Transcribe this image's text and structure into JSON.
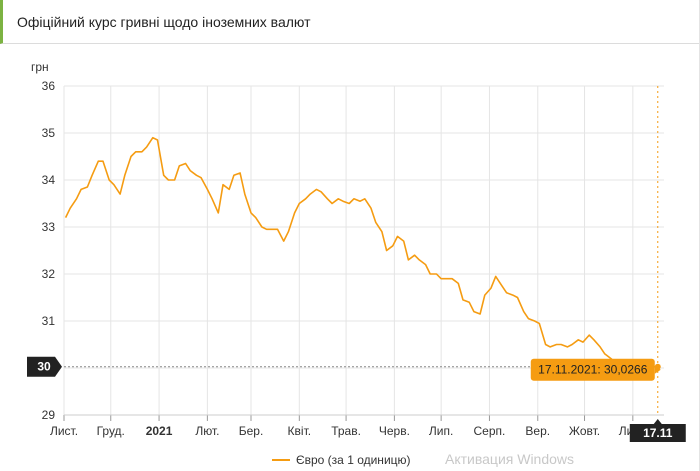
{
  "panel": {
    "title": "Офіційний курс гривні щодо іноземних валют"
  },
  "watermark": "Активация Windows",
  "colors": {
    "series": "#f59c12",
    "grid": "#e5e5e5",
    "axis": "#666666",
    "highlight_bg": "#222222",
    "tooltip_bg": "#f59c12",
    "accent": "#7cb342"
  },
  "chart_data": {
    "type": "line",
    "title": "",
    "xlabel": "",
    "ylabel": "грн",
    "ylim": [
      29,
      36
    ],
    "yticks": [
      29,
      30,
      31,
      32,
      33,
      34,
      35,
      36
    ],
    "grid": true,
    "legend": "bottom-center",
    "x_range": [
      "2020-11-01",
      "2021-11-21"
    ],
    "xticks": [
      {
        "date": "2020-11-01",
        "label": "Лист."
      },
      {
        "date": "2020-12-01",
        "label": "Груд."
      },
      {
        "date": "2021-01-01",
        "label": "2021"
      },
      {
        "date": "2021-02-01",
        "label": "Лют."
      },
      {
        "date": "2021-03-01",
        "label": "Бер."
      },
      {
        "date": "2021-04-01",
        "label": "Квіт."
      },
      {
        "date": "2021-05-01",
        "label": "Трав."
      },
      {
        "date": "2021-06-01",
        "label": "Черв."
      },
      {
        "date": "2021-07-01",
        "label": "Лип."
      },
      {
        "date": "2021-08-01",
        "label": "Серп."
      },
      {
        "date": "2021-09-01",
        "label": "Вер."
      },
      {
        "date": "2021-10-01",
        "label": "Жовт."
      },
      {
        "date": "2021-11-01",
        "label": "Лист."
      }
    ],
    "series": [
      {
        "name": "Євро (за 1 одиницю)",
        "x": [
          "2020-11-02",
          "2020-11-05",
          "2020-11-09",
          "2020-11-12",
          "2020-11-16",
          "2020-11-19",
          "2020-11-23",
          "2020-11-26",
          "2020-11-30",
          "2020-12-03",
          "2020-12-07",
          "2020-12-10",
          "2020-12-14",
          "2020-12-17",
          "2020-12-21",
          "2020-12-24",
          "2020-12-28",
          "2020-12-31",
          "2021-01-04",
          "2021-01-07",
          "2021-01-11",
          "2021-01-14",
          "2021-01-18",
          "2021-01-21",
          "2021-01-25",
          "2021-01-28",
          "2021-02-01",
          "2021-02-04",
          "2021-02-08",
          "2021-02-11",
          "2021-02-15",
          "2021-02-18",
          "2021-02-22",
          "2021-02-25",
          "2021-03-01",
          "2021-03-04",
          "2021-03-08",
          "2021-03-11",
          "2021-03-15",
          "2021-03-18",
          "2021-03-22",
          "2021-03-25",
          "2021-03-29",
          "2021-04-01",
          "2021-04-05",
          "2021-04-08",
          "2021-04-12",
          "2021-04-15",
          "2021-04-19",
          "2021-04-22",
          "2021-04-26",
          "2021-04-29",
          "2021-05-03",
          "2021-05-06",
          "2021-05-10",
          "2021-05-13",
          "2021-05-17",
          "2021-05-20",
          "2021-05-24",
          "2021-05-27",
          "2021-05-31",
          "2021-06-03",
          "2021-06-07",
          "2021-06-10",
          "2021-06-14",
          "2021-06-17",
          "2021-06-21",
          "2021-06-24",
          "2021-06-28",
          "2021-07-01",
          "2021-07-05",
          "2021-07-08",
          "2021-07-12",
          "2021-07-15",
          "2021-07-19",
          "2021-07-22",
          "2021-07-26",
          "2021-07-29",
          "2021-08-02",
          "2021-08-05",
          "2021-08-09",
          "2021-08-12",
          "2021-08-16",
          "2021-08-19",
          "2021-08-23",
          "2021-08-26",
          "2021-08-30",
          "2021-09-02",
          "2021-09-06",
          "2021-09-09",
          "2021-09-13",
          "2021-09-16",
          "2021-09-20",
          "2021-09-23",
          "2021-09-27",
          "2021-09-30",
          "2021-10-04",
          "2021-10-07",
          "2021-10-11",
          "2021-10-14",
          "2021-10-18",
          "2021-10-21",
          "2021-10-25",
          "2021-10-28",
          "2021-11-01",
          "2021-11-04",
          "2021-11-08",
          "2021-11-11",
          "2021-11-15",
          "2021-11-17"
        ],
        "y": [
          33.2,
          33.4,
          33.6,
          33.8,
          33.85,
          34.1,
          34.4,
          34.4,
          34.0,
          33.9,
          33.7,
          34.1,
          34.5,
          34.6,
          34.6,
          34.7,
          34.9,
          34.85,
          34.1,
          34.0,
          34.0,
          34.3,
          34.35,
          34.2,
          34.1,
          34.05,
          33.8,
          33.6,
          33.3,
          33.9,
          33.8,
          34.1,
          34.15,
          33.7,
          33.3,
          33.2,
          33.0,
          32.95,
          32.95,
          32.95,
          32.7,
          32.9,
          33.3,
          33.5,
          33.6,
          33.7,
          33.8,
          33.75,
          33.6,
          33.5,
          33.6,
          33.55,
          33.5,
          33.6,
          33.55,
          33.6,
          33.4,
          33.1,
          32.9,
          32.5,
          32.6,
          32.8,
          32.7,
          32.3,
          32.4,
          32.3,
          32.2,
          32.0,
          32.0,
          31.9,
          31.9,
          31.9,
          31.8,
          31.45,
          31.4,
          31.2,
          31.15,
          31.55,
          31.7,
          31.95,
          31.75,
          31.6,
          31.55,
          31.5,
          31.2,
          31.05,
          31.0,
          30.95,
          30.5,
          30.45,
          30.5,
          30.5,
          30.45,
          30.5,
          30.6,
          30.55,
          30.7,
          30.6,
          30.45,
          30.3,
          30.2,
          30.1,
          30.05,
          30.1,
          30.05,
          30.03,
          30.05,
          30.04,
          30.03,
          30.0266
        ]
      }
    ],
    "highlight": {
      "y_label": "30",
      "x_label": "17.11",
      "tooltip": "17.11.2021: 30,0266"
    }
  }
}
